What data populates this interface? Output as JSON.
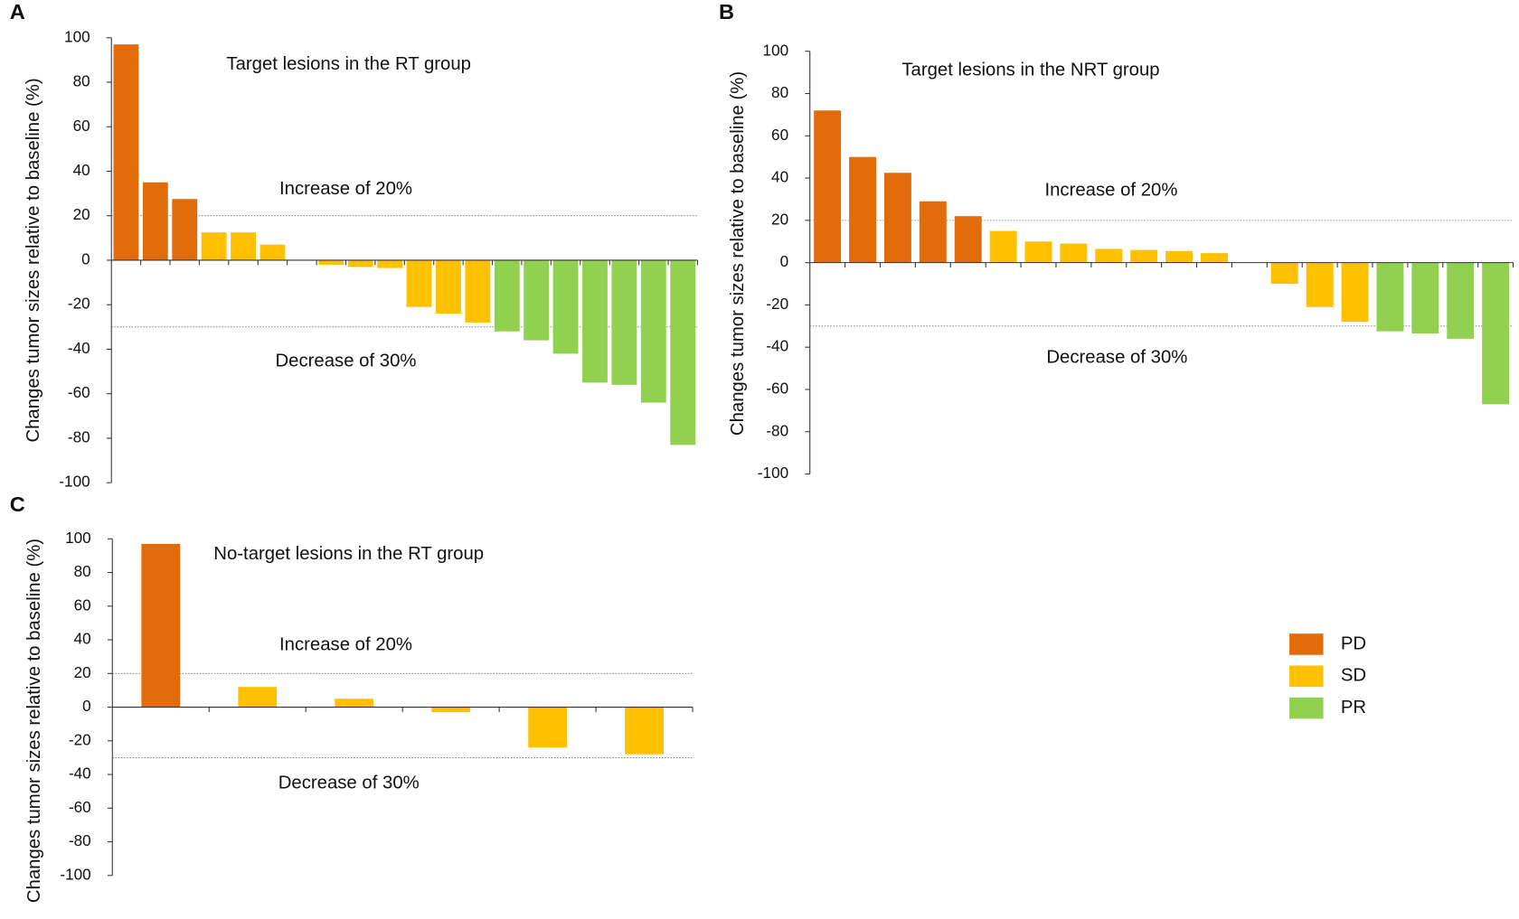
{
  "chart_data": [
    {
      "type": "bar",
      "panel": "A",
      "title": "Target lesions in the RT group",
      "ylabel": "Changes tumor sizes relative to baseline (%)",
      "annotations": [
        "Increase of 20%",
        "Decrease of 30%"
      ],
      "reference_lines": [
        20,
        -30
      ],
      "ylim": [
        -100,
        100
      ],
      "yticks": [
        100,
        80,
        60,
        40,
        20,
        0,
        -20,
        -40,
        -60,
        -80,
        -100
      ],
      "grid": false,
      "series": [
        {
          "name": "PD",
          "color": "#e36c0a",
          "values": [
            97,
            35,
            27.5,
            null,
            null,
            null,
            null,
            null,
            null,
            null,
            null,
            null,
            null,
            null,
            null,
            null,
            null,
            null,
            null,
            null
          ]
        },
        {
          "name": "SD",
          "color": "#ffc000",
          "values": [
            null,
            null,
            null,
            12.5,
            12.5,
            7,
            null,
            -2,
            -3,
            -3.5,
            -21,
            -24,
            -28,
            null,
            null,
            null,
            null,
            null,
            null,
            null
          ]
        },
        {
          "name": "PR",
          "color": "#92d050",
          "values": [
            null,
            null,
            null,
            null,
            null,
            null,
            null,
            null,
            null,
            null,
            null,
            null,
            null,
            -32,
            -36,
            -42,
            -55,
            -56,
            -64,
            -83
          ]
        }
      ]
    },
    {
      "type": "bar",
      "panel": "B",
      "title": "Target lesions in the NRT group",
      "ylabel": "Changes tumor sizes relative to baseline (%)",
      "annotations": [
        "Increase of 20%",
        "Decrease of 30%"
      ],
      "reference_lines": [
        20,
        -30
      ],
      "ylim": [
        -100,
        100
      ],
      "yticks": [
        100,
        80,
        60,
        40,
        20,
        0,
        -20,
        -40,
        -60,
        -80,
        -100
      ],
      "grid": false,
      "series": [
        {
          "name": "PD",
          "color": "#e36c0a",
          "values": [
            72,
            50,
            42.5,
            29,
            22,
            null,
            null,
            null,
            null,
            null,
            null,
            null,
            null,
            null,
            null,
            null,
            null,
            null,
            null,
            null
          ]
        },
        {
          "name": "SD",
          "color": "#ffc000",
          "values": [
            null,
            null,
            null,
            null,
            null,
            15,
            10,
            9,
            6.5,
            6,
            5.5,
            4.5,
            null,
            -10,
            -21,
            -28,
            null,
            null,
            null,
            null
          ]
        },
        {
          "name": "PR",
          "color": "#92d050",
          "values": [
            null,
            null,
            null,
            null,
            null,
            null,
            null,
            null,
            null,
            null,
            null,
            null,
            null,
            null,
            null,
            null,
            -32.5,
            -33.5,
            -36,
            -67
          ]
        }
      ]
    },
    {
      "type": "bar",
      "panel": "C",
      "title": "No-target lesions in the RT group",
      "ylabel": "Changes tumor sizes relative to baseline (%)",
      "annotations": [
        "Increase of 20%",
        "Decrease of 30%"
      ],
      "reference_lines": [
        20,
        -30
      ],
      "ylim": [
        -100,
        100
      ],
      "yticks": [
        100,
        80,
        60,
        40,
        20,
        0,
        -20,
        -40,
        -60,
        -80,
        -100
      ],
      "grid": false,
      "legend": "right",
      "series": [
        {
          "name": "PD",
          "color": "#e36c0a",
          "values": [
            97,
            null,
            null,
            null,
            null,
            null
          ]
        },
        {
          "name": "SD",
          "color": "#ffc000",
          "values": [
            null,
            12,
            5,
            -3,
            -24,
            -28
          ]
        },
        {
          "name": "PR",
          "color": "#92d050",
          "values": [
            null,
            null,
            null,
            null,
            null,
            null
          ]
        }
      ]
    }
  ]
}
